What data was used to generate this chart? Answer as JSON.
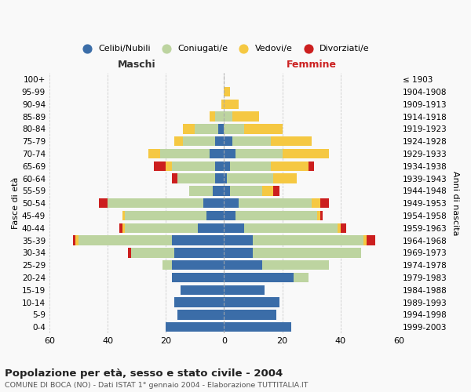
{
  "age_groups": [
    "0-4",
    "5-9",
    "10-14",
    "15-19",
    "20-24",
    "25-29",
    "30-34",
    "35-39",
    "40-44",
    "45-49",
    "50-54",
    "55-59",
    "60-64",
    "65-69",
    "70-74",
    "75-79",
    "80-84",
    "85-89",
    "90-94",
    "95-99",
    "100+"
  ],
  "birth_years": [
    "1999-2003",
    "1994-1998",
    "1989-1993",
    "1984-1988",
    "1979-1983",
    "1974-1978",
    "1969-1973",
    "1964-1968",
    "1959-1963",
    "1954-1958",
    "1949-1953",
    "1944-1948",
    "1939-1943",
    "1934-1938",
    "1929-1933",
    "1924-1928",
    "1919-1923",
    "1914-1918",
    "1909-1913",
    "1904-1908",
    "≤ 1903"
  ],
  "maschi": {
    "celibi": [
      20,
      16,
      17,
      15,
      18,
      18,
      17,
      18,
      9,
      6,
      7,
      4,
      3,
      3,
      5,
      3,
      2,
      0,
      0,
      0,
      0
    ],
    "coniugati": [
      0,
      0,
      0,
      0,
      0,
      3,
      15,
      32,
      25,
      28,
      33,
      8,
      13,
      15,
      17,
      11,
      8,
      3,
      0,
      0,
      0
    ],
    "vedovi": [
      0,
      0,
      0,
      0,
      0,
      0,
      0,
      1,
      1,
      1,
      0,
      0,
      0,
      2,
      4,
      3,
      4,
      2,
      1,
      0,
      0
    ],
    "divorziati": [
      0,
      0,
      0,
      0,
      0,
      0,
      1,
      1,
      1,
      0,
      3,
      0,
      2,
      4,
      0,
      0,
      0,
      0,
      0,
      0,
      0
    ]
  },
  "femmine": {
    "nubili": [
      23,
      18,
      19,
      14,
      24,
      13,
      10,
      10,
      7,
      4,
      5,
      2,
      1,
      2,
      4,
      3,
      0,
      0,
      0,
      0,
      0
    ],
    "coniugate": [
      0,
      0,
      0,
      0,
      5,
      23,
      37,
      38,
      32,
      28,
      25,
      11,
      16,
      14,
      16,
      13,
      7,
      3,
      0,
      0,
      0
    ],
    "vedove": [
      0,
      0,
      0,
      0,
      0,
      0,
      0,
      1,
      1,
      1,
      3,
      4,
      8,
      13,
      16,
      14,
      13,
      9,
      5,
      2,
      0
    ],
    "divorziate": [
      0,
      0,
      0,
      0,
      0,
      0,
      0,
      3,
      2,
      1,
      3,
      2,
      0,
      2,
      0,
      0,
      0,
      0,
      0,
      0,
      0
    ]
  },
  "colors": {
    "celibi": "#3b6da8",
    "coniugati": "#bdd4a0",
    "vedovi": "#f5c842",
    "divorziati": "#cc1f1f"
  },
  "xlim": 60,
  "title": "Popolazione per età, sesso e stato civile - 2004",
  "subtitle": "COMUNE DI BOCA (NO) - Dati ISTAT 1° gennaio 2004 - Elaborazione TUTTITALIA.IT",
  "ylabel_left": "Fasce di età",
  "ylabel_right": "Anni di nascita",
  "xlabel_left": "Maschi",
  "xlabel_right": "Femmine",
  "bg_color": "#f9f9f9",
  "grid_color": "#cccccc"
}
